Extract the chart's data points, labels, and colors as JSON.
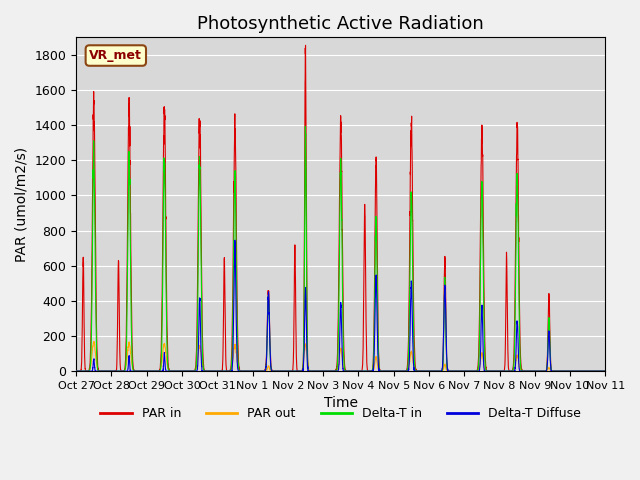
{
  "title": "Photosynthetic Active Radiation",
  "ylabel": "PAR (umol/m2/s)",
  "xlabel": "Time",
  "annotation": "VR_met",
  "ylim": [
    0,
    1900
  ],
  "yticks": [
    0,
    200,
    400,
    600,
    800,
    1000,
    1200,
    1400,
    1600,
    1800
  ],
  "xtick_labels": [
    "Oct 27",
    "Oct 28",
    "Oct 29",
    "Oct 30",
    "Oct 31",
    "Nov 1",
    "Nov 2",
    "Nov 3",
    "Nov 4",
    "Nov 5",
    "Nov 6",
    "Nov 7",
    "Nov 8",
    "Nov 9",
    "Nov 10",
    "Nov 11"
  ],
  "colors": {
    "PAR_in": "#dd0000",
    "PAR_out": "#ffaa00",
    "Delta_T_in": "#00dd00",
    "Delta_T_Diffuse": "#0000dd"
  },
  "background_color": "#e8e8e8",
  "plot_bg_color": "#d8d8d8",
  "legend": [
    "PAR in",
    "PAR out",
    "Delta-T in",
    "Delta-T Diffuse"
  ],
  "title_fontsize": 13,
  "axis_fontsize": 10,
  "tick_fontsize": 9,
  "days": 15,
  "points_per_day": 288,
  "daily_data": {
    "PAR_in_peaks": [
      1530,
      1510,
      1490,
      1440,
      1390,
      450,
      1800,
      1450,
      1210,
      1400,
      650,
      1360,
      1380,
      440,
      0
    ],
    "PAR_in_peaks2": [
      640,
      640,
      0,
      0,
      640,
      0,
      700,
      0,
      930,
      0,
      0,
      0,
      640,
      0,
      0
    ],
    "PAR_out_peaks": [
      165,
      160,
      155,
      140,
      145,
      30,
      150,
      130,
      80,
      110,
      40,
      100,
      90,
      20,
      0
    ],
    "DeltaT_in_peaks": [
      1230,
      1220,
      1210,
      1200,
      1100,
      430,
      1350,
      1170,
      870,
      1010,
      510,
      1080,
      1100,
      300,
      0
    ],
    "DeltaT_D_peaks": [
      70,
      80,
      95,
      410,
      720,
      450,
      460,
      390,
      540,
      490,
      490,
      380,
      280,
      220,
      0
    ],
    "PAR_in_width": [
      0.1,
      0.1,
      0.1,
      0.1,
      0.1,
      0.08,
      0.06,
      0.1,
      0.08,
      0.1,
      0.06,
      0.1,
      0.1,
      0.06,
      0.05
    ],
    "PAR_in_width2": [
      0.05,
      0.05,
      0.05,
      0.05,
      0.05,
      0.05,
      0.05,
      0.05,
      0.06,
      0.05,
      0.05,
      0.05,
      0.05,
      0.05,
      0.05
    ],
    "PAR_out_width": [
      0.12,
      0.12,
      0.12,
      0.12,
      0.12,
      0.06,
      0.1,
      0.1,
      0.08,
      0.1,
      0.06,
      0.1,
      0.1,
      0.06,
      0.05
    ],
    "DeltaT_in_width": [
      0.09,
      0.09,
      0.09,
      0.09,
      0.09,
      0.07,
      0.06,
      0.09,
      0.08,
      0.09,
      0.06,
      0.09,
      0.09,
      0.06,
      0.05
    ],
    "DeltaT_D_width": [
      0.04,
      0.04,
      0.04,
      0.06,
      0.07,
      0.07,
      0.06,
      0.06,
      0.07,
      0.07,
      0.07,
      0.06,
      0.06,
      0.06,
      0.05
    ],
    "day_center": [
      0.5,
      0.5,
      0.5,
      0.5,
      0.5,
      0.45,
      0.5,
      0.5,
      0.5,
      0.5,
      0.45,
      0.5,
      0.5,
      0.4,
      0.5
    ],
    "center2_offset": [
      0.3,
      0.3,
      0.3,
      0.3,
      0.3,
      0.3,
      0.3,
      0.3,
      0.32,
      0.3,
      0.3,
      0.3,
      0.3,
      0.3,
      0.3
    ]
  }
}
